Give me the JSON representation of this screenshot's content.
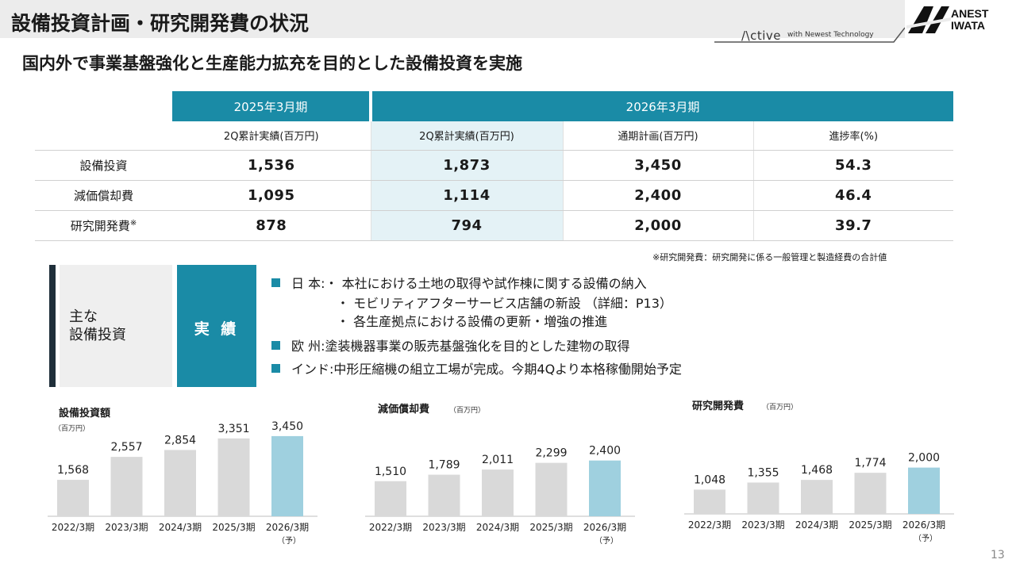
{
  "header": {
    "title": "設備投資計画・研究開発費の状況",
    "tagline_brand": "/\\ctive",
    "tagline_sub": "with Newest Technology",
    "logo_text": "ANEST\nIWATA"
  },
  "subtitle": "国内外で事業基盤強化と生産能力拡充を目的とした設備投資を実施",
  "table": {
    "period_2025": "2025年3月期",
    "period_2026": "2026年3月期",
    "col_headers": [
      "2Q累計実績(百万円)",
      "2Q累計実績(百万円)",
      "通期計画(百万円)",
      "進捗率(%)"
    ],
    "rows": [
      {
        "label": "設備投資",
        "mark": "",
        "values": [
          "1,536",
          "1,873",
          "3,450",
          "54.3"
        ]
      },
      {
        "label": "減価償却費",
        "mark": "",
        "values": [
          "1,095",
          "1,114",
          "2,400",
          "46.4"
        ]
      },
      {
        "label": "研究開発費",
        "mark": "※",
        "values": [
          "878",
          "794",
          "2,000",
          "39.7"
        ]
      }
    ],
    "footnote": "※研究開発費：研究開発に係る一般管理と製造経費の合計値"
  },
  "investments": {
    "label": "主な\n設備投資",
    "tag": "実 績",
    "japan_head": "日 本:・ 本社における土地の取得や試作棟に関する設備の納入",
    "japan_sub1": "・ モビリティアフターサービス店舗の新設 （詳細：P13）",
    "japan_sub2": "・ 各生産拠点における設備の更新・増強の推進",
    "europe": "欧 州:塗装機器事業の販売基盤強化を目的とした建物の取得",
    "india": "インド:中形圧縮機の組立工場が完成。今期4Qより本格稼働開始予定"
  },
  "chart_data": [
    {
      "type": "bar",
      "title": "設備投資額",
      "unit": "（百万円）",
      "categories": [
        "2022/3期",
        "2023/3期",
        "2024/3期",
        "2025/3期",
        "2026/3期"
      ],
      "forecast_note": "（予）",
      "values": [
        1568,
        2557,
        2854,
        3351,
        3450
      ],
      "value_labels": [
        "1,568",
        "2,557",
        "2,854",
        "3,351",
        "3,450"
      ],
      "ylim": [
        0,
        3800
      ],
      "colors": {
        "actual": "#d9d9d9",
        "forecast": "#9fd0df"
      }
    },
    {
      "type": "bar",
      "title": "減価償却費",
      "unit": "（百万円）",
      "categories": [
        "2022/3期",
        "2023/3期",
        "2024/3期",
        "2025/3期",
        "2026/3期"
      ],
      "forecast_note": "（予）",
      "values": [
        1510,
        1789,
        2011,
        2299,
        2400
      ],
      "value_labels": [
        "1,510",
        "1,789",
        "2,011",
        "2,299",
        "2,400"
      ],
      "ylim": [
        0,
        3800
      ],
      "colors": {
        "actual": "#d9d9d9",
        "forecast": "#9fd0df"
      }
    },
    {
      "type": "bar",
      "title": "研究開発費",
      "unit": "（百万円）",
      "categories": [
        "2022/3期",
        "2023/3期",
        "2024/3期",
        "2025/3期",
        "2026/3期"
      ],
      "forecast_note": "（予）",
      "values": [
        1048,
        1355,
        1468,
        1774,
        2000
      ],
      "value_labels": [
        "1,048",
        "1,355",
        "1,468",
        "1,774",
        "2,000"
      ],
      "ylim": [
        0,
        3800
      ],
      "colors": {
        "actual": "#d9d9d9",
        "forecast": "#9fd0df"
      }
    }
  ],
  "page_number": "13",
  "colors": {
    "accent": "#1a8ba6",
    "highlight": "#e4f2f6"
  }
}
